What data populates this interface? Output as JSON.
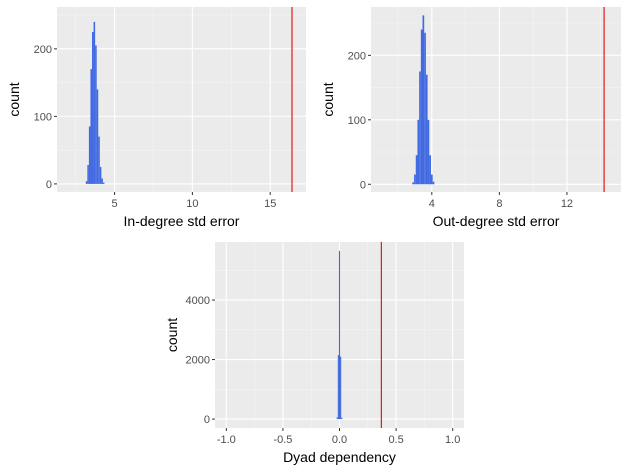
{
  "colors": {
    "panel_bg": "#ebebeb",
    "grid_major": "#ffffff",
    "grid_minor": "#f5f5f5",
    "bar": "#4169e1",
    "observed_line": "#e31a1c",
    "tick": "#333333"
  },
  "chart_data": [
    {
      "type": "bar",
      "xlabel": "In-degree std error",
      "ylabel": "count",
      "xlim": [
        1.3,
        17.3
      ],
      "ylim": [
        -12,
        262
      ],
      "xticks": [
        5,
        10,
        15
      ],
      "yticks": [
        0,
        100,
        200
      ],
      "grid": true,
      "bin_width": 0.1,
      "bins": [
        {
          "x": 3.2,
          "count": 4
        },
        {
          "x": 3.3,
          "count": 28
        },
        {
          "x": 3.4,
          "count": 85
        },
        {
          "x": 3.5,
          "count": 170
        },
        {
          "x": 3.6,
          "count": 225
        },
        {
          "x": 3.7,
          "count": 240
        },
        {
          "x": 3.8,
          "count": 205
        },
        {
          "x": 3.9,
          "count": 140
        },
        {
          "x": 4.0,
          "count": 70
        },
        {
          "x": 4.1,
          "count": 25
        },
        {
          "x": 4.2,
          "count": 8
        },
        {
          "x": 4.3,
          "count": 2
        }
      ],
      "observed_value": 16.4
    },
    {
      "type": "bar",
      "xlabel": "Out-degree std error",
      "ylabel": "count",
      "xlim": [
        0.4,
        15.2
      ],
      "ylim": [
        -12,
        275
      ],
      "xticks": [
        4,
        8,
        12
      ],
      "yticks": [
        0,
        100,
        200
      ],
      "grid": true,
      "bin_width": 0.1,
      "bins": [
        {
          "x": 2.9,
          "count": 3
        },
        {
          "x": 3.0,
          "count": 15
        },
        {
          "x": 3.1,
          "count": 45
        },
        {
          "x": 3.2,
          "count": 100
        },
        {
          "x": 3.3,
          "count": 175
        },
        {
          "x": 3.4,
          "count": 240
        },
        {
          "x": 3.5,
          "count": 262
        },
        {
          "x": 3.6,
          "count": 235
        },
        {
          "x": 3.7,
          "count": 170
        },
        {
          "x": 3.8,
          "count": 100
        },
        {
          "x": 3.9,
          "count": 45
        },
        {
          "x": 4.0,
          "count": 15
        },
        {
          "x": 4.1,
          "count": 4
        }
      ],
      "observed_value": 14.2
    },
    {
      "type": "bar",
      "xlabel": "Dyad dependency",
      "ylabel": "count",
      "xlim": [
        -1.1,
        1.1
      ],
      "ylim": [
        -300,
        5950
      ],
      "xticks": [
        -1.0,
        -0.5,
        0.0,
        0.5,
        1.0
      ],
      "xtick_labels": [
        "-1.0",
        "-0.5",
        "0.0",
        "0.5",
        "1.0"
      ],
      "yticks": [
        0,
        2000,
        4000
      ],
      "grid": true,
      "bin_width": 0.01,
      "bins": [
        {
          "x": -0.02,
          "count": 60
        },
        {
          "x": -0.01,
          "count": 2150
        },
        {
          "x": 0.0,
          "count": 5650
        },
        {
          "x": 0.01,
          "count": 2100
        },
        {
          "x": 0.02,
          "count": 50
        }
      ],
      "observed_value": 0.37
    }
  ]
}
